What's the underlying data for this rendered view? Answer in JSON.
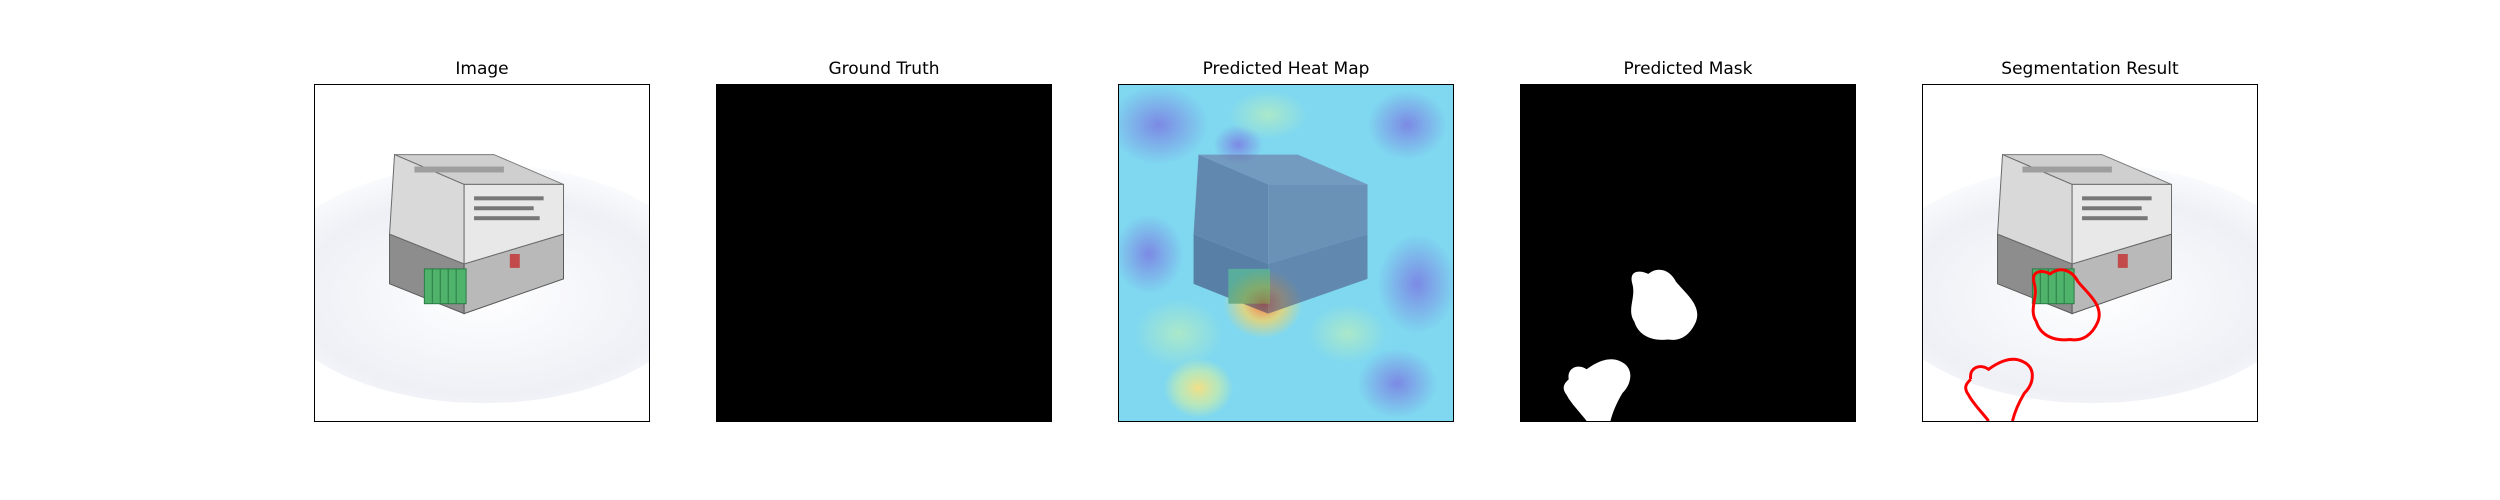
{
  "panels": [
    {
      "title": "Image"
    },
    {
      "title": "Ground Truth"
    },
    {
      "title": "Predicted Heat Map"
    },
    {
      "title": "Predicted Mask"
    },
    {
      "title": "Segmentation Result"
    }
  ],
  "colors": {
    "background": "#ffffff",
    "frame": "#000000",
    "mask_background": "#000000",
    "mask_foreground": "#ffffff",
    "contour": "#ff0000",
    "heatmap_base": "#7fd8f0",
    "heatmap_hot": "#ff6a3c",
    "heatmap_cold": "#7b6fe0"
  },
  "icons": {
    "object": "industrial-device-icon"
  }
}
